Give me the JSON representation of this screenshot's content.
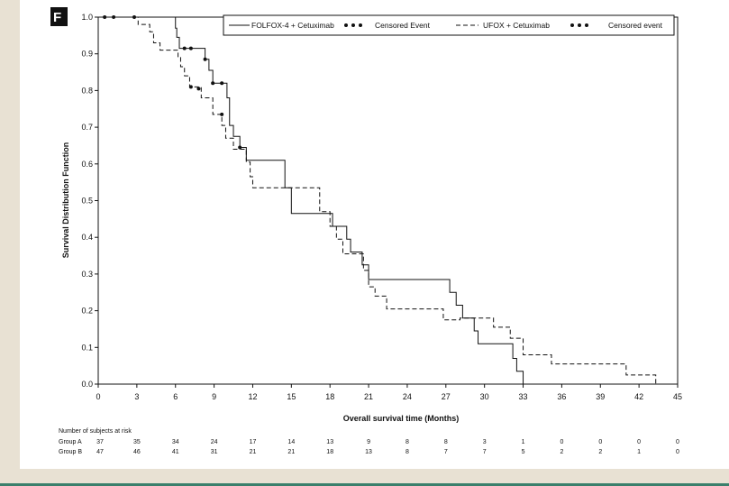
{
  "panel_label": "F",
  "chart_data": {
    "type": "line",
    "xlabel": "Overall survival time (Months)",
    "ylabel": "Survival Distribution Function",
    "xlim": [
      0,
      45
    ],
    "ylim": [
      0,
      1
    ],
    "xticks": [
      0,
      3,
      6,
      9,
      12,
      15,
      18,
      21,
      24,
      27,
      30,
      33,
      36,
      39,
      42,
      45
    ],
    "yticks": [
      0.0,
      0.1,
      0.2,
      0.3,
      0.4,
      0.5,
      0.6,
      0.7,
      0.8,
      0.9,
      1.0
    ],
    "ytick_labels": [
      "0.0",
      "0.1",
      "0.2",
      "0.3",
      "0.4",
      "0.5",
      "0.6",
      "0.7",
      "0.8",
      "0.9",
      "1.0"
    ],
    "grid": false,
    "legend_position": "top",
    "legend": {
      "series_a": "FOLFOX-4 + Cetuximab",
      "censor_a": "Censored Event",
      "series_b": "UFOX + Cetuximab",
      "censor_b": "Censored event"
    },
    "series": [
      {
        "name": "FOLFOX-4 + Cetuximab",
        "style": "solid",
        "color": "#111111",
        "steps": [
          [
            0,
            1.0
          ],
          [
            6.0,
            0.97
          ],
          [
            6.1,
            0.945
          ],
          [
            6.3,
            0.915
          ],
          [
            8.3,
            0.885
          ],
          [
            8.6,
            0.855
          ],
          [
            8.9,
            0.82
          ],
          [
            10.0,
            0.78
          ],
          [
            10.2,
            0.705
          ],
          [
            10.5,
            0.675
          ],
          [
            11.0,
            0.645
          ],
          [
            11.5,
            0.61
          ],
          [
            14.5,
            0.535
          ],
          [
            15.0,
            0.465
          ],
          [
            18.2,
            0.43
          ],
          [
            19.3,
            0.395
          ],
          [
            19.6,
            0.36
          ],
          [
            20.5,
            0.325
          ],
          [
            21.0,
            0.285
          ],
          [
            27.3,
            0.25
          ],
          [
            27.8,
            0.215
          ],
          [
            28.3,
            0.18
          ],
          [
            29.2,
            0.145
          ],
          [
            29.5,
            0.11
          ],
          [
            32.2,
            0.07
          ],
          [
            32.5,
            0.035
          ],
          [
            33.0,
            0.0
          ]
        ],
        "censored": [
          [
            0.5,
            1.0
          ],
          [
            1.2,
            1.0
          ],
          [
            2.8,
            1.0
          ],
          [
            6.7,
            0.915
          ],
          [
            7.2,
            0.915
          ],
          [
            8.3,
            0.885
          ],
          [
            8.9,
            0.82
          ],
          [
            9.6,
            0.82
          ],
          [
            11.0,
            0.645
          ]
        ],
        "end": 33.0
      },
      {
        "name": "UFOX + Cetuximab",
        "style": "dashed",
        "color": "#111111",
        "steps": [
          [
            0,
            1.0
          ],
          [
            3.1,
            0.98
          ],
          [
            4.0,
            0.96
          ],
          [
            4.3,
            0.93
          ],
          [
            4.8,
            0.91
          ],
          [
            6.2,
            0.89
          ],
          [
            6.4,
            0.865
          ],
          [
            6.7,
            0.84
          ],
          [
            7.1,
            0.81
          ],
          [
            8.0,
            0.78
          ],
          [
            8.9,
            0.735
          ],
          [
            9.6,
            0.705
          ],
          [
            9.9,
            0.67
          ],
          [
            10.5,
            0.64
          ],
          [
            11.5,
            0.605
          ],
          [
            11.8,
            0.565
          ],
          [
            12.0,
            0.535
          ],
          [
            15.0,
            0.535
          ],
          [
            17.2,
            0.47
          ],
          [
            18.0,
            0.43
          ],
          [
            18.5,
            0.395
          ],
          [
            19.0,
            0.355
          ],
          [
            20.6,
            0.31
          ],
          [
            21.0,
            0.265
          ],
          [
            21.5,
            0.24
          ],
          [
            22.4,
            0.205
          ],
          [
            26.8,
            0.175
          ],
          [
            28.1,
            0.18
          ],
          [
            30.7,
            0.155
          ],
          [
            32.0,
            0.125
          ],
          [
            33.0,
            0.08
          ],
          [
            35.2,
            0.055
          ],
          [
            41.0,
            0.025
          ],
          [
            43.3,
            0.0
          ]
        ],
        "censored": [
          [
            7.2,
            0.81
          ],
          [
            7.8,
            0.805
          ],
          [
            9.6,
            0.735
          ]
        ],
        "end": 43.3
      }
    ],
    "risk_table": {
      "title": "Number of subjects at risk",
      "times": [
        0,
        3,
        6,
        9,
        12,
        15,
        18,
        21,
        24,
        27,
        30,
        33,
        36,
        39,
        42,
        45
      ],
      "groups": [
        {
          "label": "Group A",
          "counts": [
            "37",
            "35",
            "34",
            "24",
            "17",
            "14",
            "13",
            "9",
            "8",
            "8",
            "3",
            "1",
            "0",
            "0",
            "0",
            "0"
          ]
        },
        {
          "label": "Group B",
          "counts": [
            "47",
            "46",
            "41",
            "31",
            "21",
            "21",
            "18",
            "13",
            "8",
            "7",
            "7",
            "5",
            "2",
            "2",
            "1",
            "0"
          ]
        }
      ]
    }
  }
}
